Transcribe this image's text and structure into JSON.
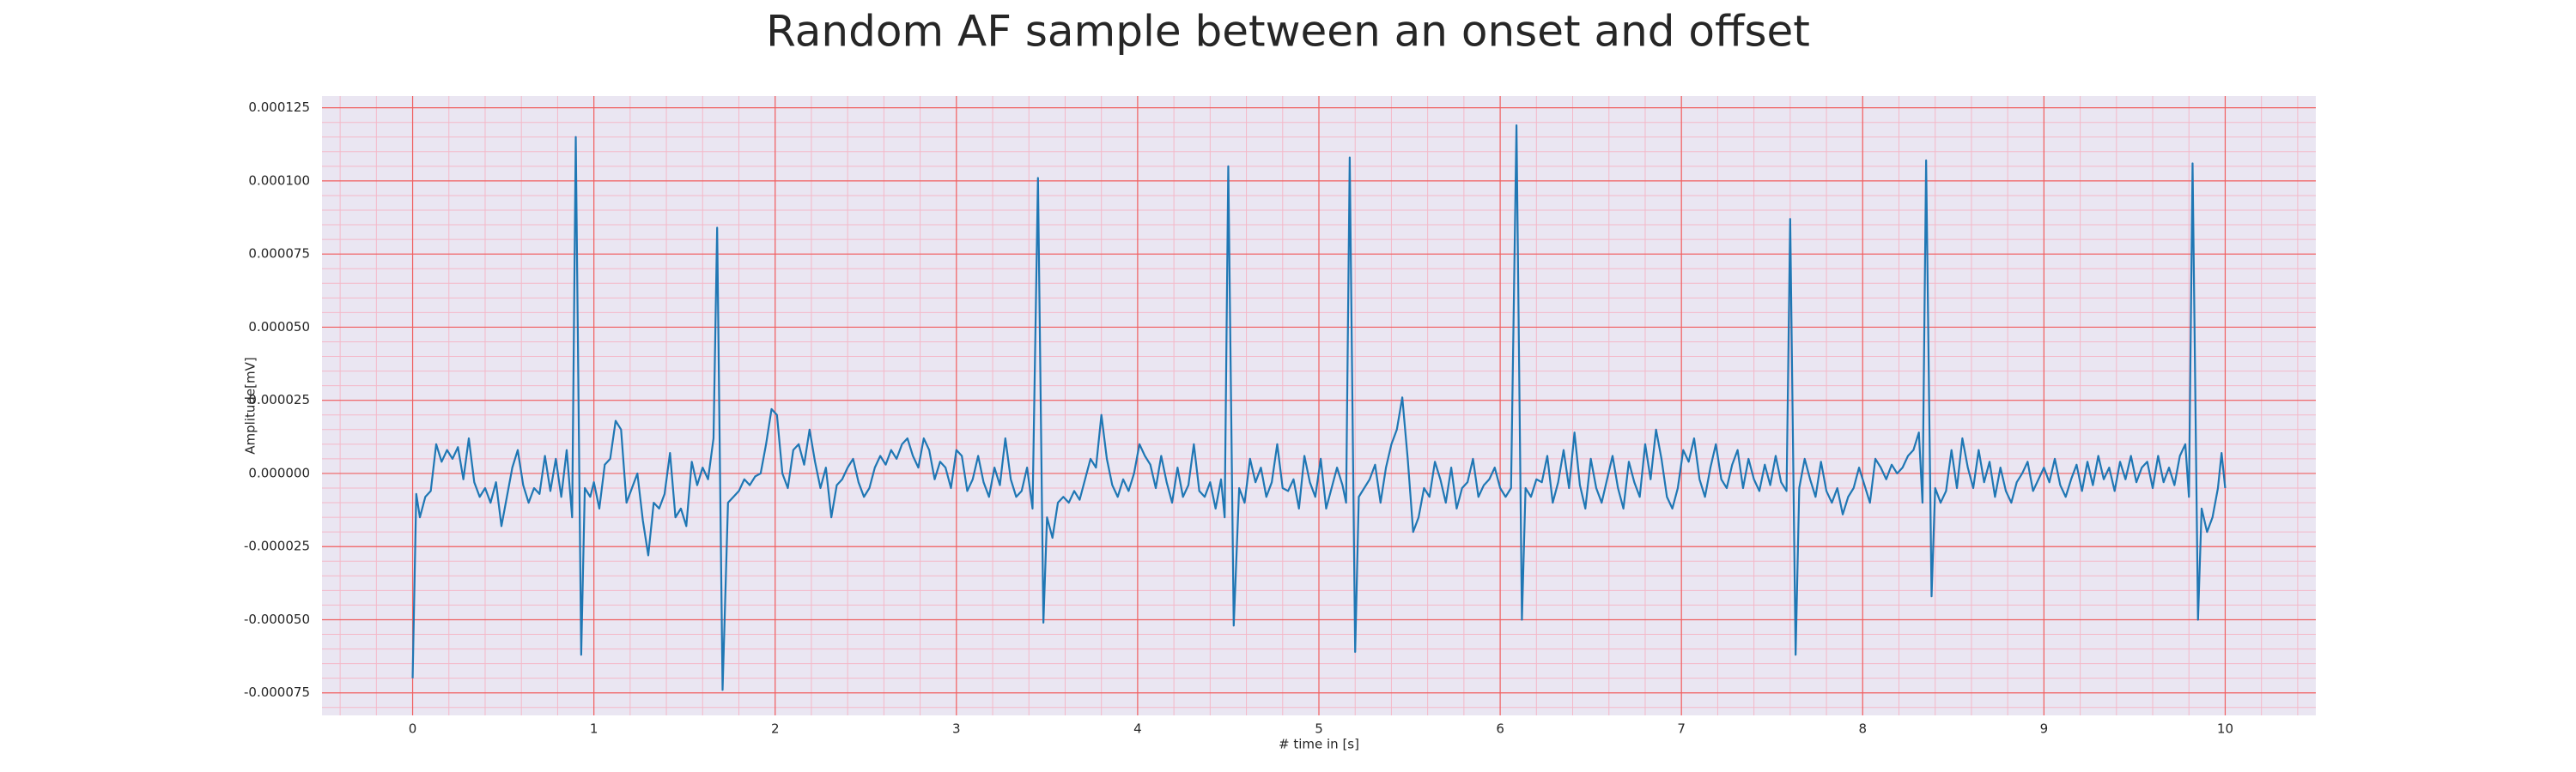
{
  "chart_data": {
    "type": "line",
    "title": "Random AF sample between an onset and offset",
    "xlabel": "# time in [s]",
    "ylabel": "Amplitude[mV]",
    "color": "#1f77b4",
    "grid": true,
    "minor_grid": true,
    "xlim": [
      -0.5,
      10.5
    ],
    "ylim": [
      -8.27e-05,
      0.000129
    ],
    "xticks": [
      0,
      1,
      2,
      3,
      4,
      5,
      6,
      7,
      8,
      9,
      10
    ],
    "yticks": [
      {
        "value": -7.5e-05,
        "label": "-0.000075"
      },
      {
        "value": -5e-05,
        "label": "-0.000050"
      },
      {
        "value": -2.5e-05,
        "label": "-0.000025"
      },
      {
        "value": 0,
        "label": "0.000000"
      },
      {
        "value": 2.5e-05,
        "label": "0.000025"
      },
      {
        "value": 5e-05,
        "label": "0.000050"
      },
      {
        "value": 7.5e-05,
        "label": "0.000075"
      },
      {
        "value": 0.0001,
        "label": "0.000100"
      },
      {
        "value": 0.000125,
        "label": "0.000125"
      }
    ],
    "x": [
      0,
      0.02,
      0.04,
      0.07,
      0.1,
      0.13,
      0.16,
      0.19,
      0.22,
      0.25,
      0.28,
      0.31,
      0.34,
      0.37,
      0.4,
      0.43,
      0.46,
      0.49,
      0.52,
      0.55,
      0.58,
      0.61,
      0.64,
      0.67,
      0.7,
      0.73,
      0.76,
      0.79,
      0.82,
      0.85,
      0.88,
      0.9,
      0.93,
      0.95,
      0.98,
      1,
      1.03,
      1.06,
      1.09,
      1.12,
      1.15,
      1.18,
      1.21,
      1.24,
      1.27,
      1.3,
      1.33,
      1.36,
      1.39,
      1.42,
      1.45,
      1.48,
      1.51,
      1.54,
      1.57,
      1.6,
      1.63,
      1.66,
      1.68,
      1.71,
      1.74,
      1.77,
      1.8,
      1.83,
      1.86,
      1.89,
      1.92,
      1.95,
      1.98,
      2.01,
      2.04,
      2.07,
      2.1,
      2.13,
      2.16,
      2.19,
      2.22,
      2.25,
      2.28,
      2.31,
      2.34,
      2.37,
      2.4,
      2.43,
      2.46,
      2.49,
      2.52,
      2.55,
      2.58,
      2.61,
      2.64,
      2.67,
      2.7,
      2.73,
      2.76,
      2.79,
      2.82,
      2.85,
      2.88,
      2.91,
      2.94,
      2.97,
      3,
      3.03,
      3.06,
      3.09,
      3.12,
      3.15,
      3.18,
      3.21,
      3.24,
      3.27,
      3.3,
      3.33,
      3.36,
      3.39,
      3.42,
      3.45,
      3.48,
      3.5,
      3.53,
      3.56,
      3.59,
      3.62,
      3.65,
      3.68,
      3.71,
      3.74,
      3.77,
      3.8,
      3.83,
      3.86,
      3.89,
      3.92,
      3.95,
      3.98,
      4.01,
      4.04,
      4.07,
      4.1,
      4.13,
      4.16,
      4.19,
      4.22,
      4.25,
      4.28,
      4.31,
      4.34,
      4.37,
      4.4,
      4.43,
      4.46,
      4.48,
      4.5,
      4.53,
      4.56,
      4.59,
      4.62,
      4.65,
      4.68,
      4.71,
      4.74,
      4.77,
      4.8,
      4.83,
      4.86,
      4.89,
      4.92,
      4.95,
      4.98,
      5.01,
      5.04,
      5.07,
      5.1,
      5.13,
      5.15,
      5.17,
      5.2,
      5.22,
      5.25,
      5.28,
      5.31,
      5.34,
      5.37,
      5.4,
      5.43,
      5.46,
      5.49,
      5.52,
      5.55,
      5.58,
      5.61,
      5.64,
      5.67,
      5.7,
      5.73,
      5.76,
      5.79,
      5.82,
      5.85,
      5.88,
      5.91,
      5.94,
      5.97,
      6,
      6.03,
      6.06,
      6.09,
      6.12,
      6.14,
      6.17,
      6.2,
      6.23,
      6.26,
      6.29,
      6.32,
      6.35,
      6.38,
      6.41,
      6.44,
      6.47,
      6.5,
      6.53,
      6.56,
      6.59,
      6.62,
      6.65,
      6.68,
      6.71,
      6.74,
      6.77,
      6.8,
      6.83,
      6.86,
      6.89,
      6.92,
      6.95,
      6.98,
      7.01,
      7.04,
      7.07,
      7.1,
      7.13,
      7.16,
      7.19,
      7.22,
      7.25,
      7.28,
      7.31,
      7.34,
      7.37,
      7.4,
      7.43,
      7.46,
      7.49,
      7.52,
      7.55,
      7.58,
      7.6,
      7.63,
      7.65,
      7.68,
      7.71,
      7.74,
      7.77,
      7.8,
      7.83,
      7.86,
      7.89,
      7.92,
      7.95,
      7.98,
      8.01,
      8.04,
      8.07,
      8.1,
      8.13,
      8.16,
      8.19,
      8.22,
      8.25,
      8.28,
      8.31,
      8.33,
      8.35,
      8.38,
      8.4,
      8.43,
      8.46,
      8.49,
      8.52,
      8.55,
      8.58,
      8.61,
      8.64,
      8.67,
      8.7,
      8.73,
      8.76,
      8.79,
      8.82,
      8.85,
      8.88,
      8.91,
      8.94,
      8.97,
      9,
      9.03,
      9.06,
      9.09,
      9.12,
      9.15,
      9.18,
      9.21,
      9.24,
      9.27,
      9.3,
      9.33,
      9.36,
      9.39,
      9.42,
      9.45,
      9.48,
      9.51,
      9.54,
      9.57,
      9.6,
      9.63,
      9.66,
      9.69,
      9.72,
      9.75,
      9.78,
      9.8,
      9.82,
      9.85,
      9.87,
      9.9,
      9.93,
      9.96,
      9.98,
      10
    ],
    "values": [
      -7e-05,
      -7e-06,
      -1.5e-05,
      -8e-06,
      -6e-06,
      1e-05,
      4e-06,
      8e-06,
      5e-06,
      9e-06,
      -2e-06,
      1.2e-05,
      -3e-06,
      -8e-06,
      -5e-06,
      -1e-05,
      -3e-06,
      -1.8e-05,
      -8e-06,
      2e-06,
      8e-06,
      -4e-06,
      -1e-05,
      -5e-06,
      -7e-06,
      6e-06,
      -6e-06,
      5e-06,
      -8e-06,
      8e-06,
      -1.5e-05,
      0.000115,
      -6.2e-05,
      -5e-06,
      -8e-06,
      -3e-06,
      -1.2e-05,
      3e-06,
      5e-06,
      1.8e-05,
      1.5e-05,
      -1e-05,
      -5e-06,
      0,
      -1.6e-05,
      -2.8e-05,
      -1e-05,
      -1.2e-05,
      -7e-06,
      7e-06,
      -1.5e-05,
      -1.2e-05,
      -1.8e-05,
      4e-06,
      -4e-06,
      2e-06,
      -2e-06,
      1.2e-05,
      8.4e-05,
      -7.4e-05,
      -1e-05,
      -8e-06,
      -6e-06,
      -2e-06,
      -4e-06,
      -1e-06,
      0,
      1e-05,
      2.2e-05,
      2e-05,
      0,
      -5e-06,
      8e-06,
      1e-05,
      3e-06,
      1.5e-05,
      4e-06,
      -5e-06,
      2e-06,
      -1.5e-05,
      -4e-06,
      -2e-06,
      2e-06,
      5e-06,
      -3e-06,
      -8e-06,
      -5e-06,
      2e-06,
      6e-06,
      3e-06,
      8e-06,
      5e-06,
      1e-05,
      1.2e-05,
      6e-06,
      2e-06,
      1.2e-05,
      8e-06,
      -2e-06,
      4e-06,
      2e-06,
      -5e-06,
      8e-06,
      6e-06,
      -6e-06,
      -2e-06,
      6e-06,
      -3e-06,
      -8e-06,
      2e-06,
      -4e-06,
      1.2e-05,
      -2e-06,
      -8e-06,
      -6e-06,
      2e-06,
      -1.2e-05,
      0.000101,
      -5.1e-05,
      -1.5e-05,
      -2.2e-05,
      -1e-05,
      -8e-06,
      -1e-05,
      -6e-06,
      -9e-06,
      -2e-06,
      5e-06,
      2e-06,
      2e-05,
      5e-06,
      -4e-06,
      -8e-06,
      -2e-06,
      -6e-06,
      0,
      1e-05,
      6e-06,
      3e-06,
      -5e-06,
      6e-06,
      -3e-06,
      -1e-05,
      2e-06,
      -8e-06,
      -4e-06,
      1e-05,
      -6e-06,
      -8e-06,
      -3e-06,
      -1.2e-05,
      -2e-06,
      -1.5e-05,
      0.000105,
      -5.2e-05,
      -5e-06,
      -1e-05,
      5e-06,
      -3e-06,
      2e-06,
      -8e-06,
      -3e-06,
      1e-05,
      -5e-06,
      -6e-06,
      -2e-06,
      -1.2e-05,
      6e-06,
      -3e-06,
      -8e-06,
      5e-06,
      -1.2e-05,
      -5e-06,
      2e-06,
      -4e-06,
      -1e-05,
      0.000108,
      -6.1e-05,
      -8e-06,
      -5e-06,
      -2e-06,
      3e-06,
      -1e-05,
      2e-06,
      1e-05,
      1.5e-05,
      2.6e-05,
      5e-06,
      -2e-05,
      -1.5e-05,
      -5e-06,
      -8e-06,
      4e-06,
      -2e-06,
      -1e-05,
      2e-06,
      -1.2e-05,
      -5e-06,
      -3e-06,
      5e-06,
      -8e-06,
      -4e-06,
      -2e-06,
      2e-06,
      -5e-06,
      -8e-06,
      -5e-06,
      0.000119,
      -5e-05,
      -5e-06,
      -8e-06,
      -2e-06,
      -3e-06,
      6e-06,
      -1e-05,
      -3e-06,
      8e-06,
      -5e-06,
      1.4e-05,
      -4e-06,
      -1.2e-05,
      5e-06,
      -5e-06,
      -1e-05,
      -2e-06,
      6e-06,
      -5e-06,
      -1.2e-05,
      4e-06,
      -3e-06,
      -8e-06,
      1e-05,
      -2e-06,
      1.5e-05,
      5e-06,
      -8e-06,
      -1.2e-05,
      -5e-06,
      8e-06,
      4e-06,
      1.2e-05,
      -2e-06,
      -8e-06,
      2e-06,
      1e-05,
      -2e-06,
      -5e-06,
      3e-06,
      8e-06,
      -5e-06,
      5e-06,
      -2e-06,
      -6e-06,
      3e-06,
      -4e-06,
      6e-06,
      -3e-06,
      -6e-06,
      8.7e-05,
      -6.2e-05,
      -5e-06,
      5e-06,
      -2e-06,
      -8e-06,
      4e-06,
      -6e-06,
      -1e-05,
      -5e-06,
      -1.4e-05,
      -8e-06,
      -5e-06,
      2e-06,
      -4e-06,
      -1e-05,
      5e-06,
      2e-06,
      -2e-06,
      3e-06,
      0,
      2e-06,
      6e-06,
      8e-06,
      1.4e-05,
      -1e-05,
      0.000107,
      -4.2e-05,
      -5e-06,
      -1e-05,
      -6e-06,
      8e-06,
      -5e-06,
      1.2e-05,
      2e-06,
      -5e-06,
      8e-06,
      -3e-06,
      4e-06,
      -8e-06,
      2e-06,
      -6e-06,
      -1e-05,
      -3e-06,
      0,
      4e-06,
      -6e-06,
      -2e-06,
      2e-06,
      -3e-06,
      5e-06,
      -4e-06,
      -8e-06,
      -2e-06,
      3e-06,
      -6e-06,
      4e-06,
      -4e-06,
      6e-06,
      -2e-06,
      2e-06,
      -6e-06,
      4e-06,
      -2e-06,
      6e-06,
      -3e-06,
      2e-06,
      4e-06,
      -5e-06,
      6e-06,
      -3e-06,
      2e-06,
      -4e-06,
      6e-06,
      1e-05,
      -8e-06,
      0.000106,
      -5e-05,
      -1.2e-05,
      -2e-05,
      -1.5e-05,
      -5e-06,
      7e-06,
      -5e-06
    ]
  }
}
